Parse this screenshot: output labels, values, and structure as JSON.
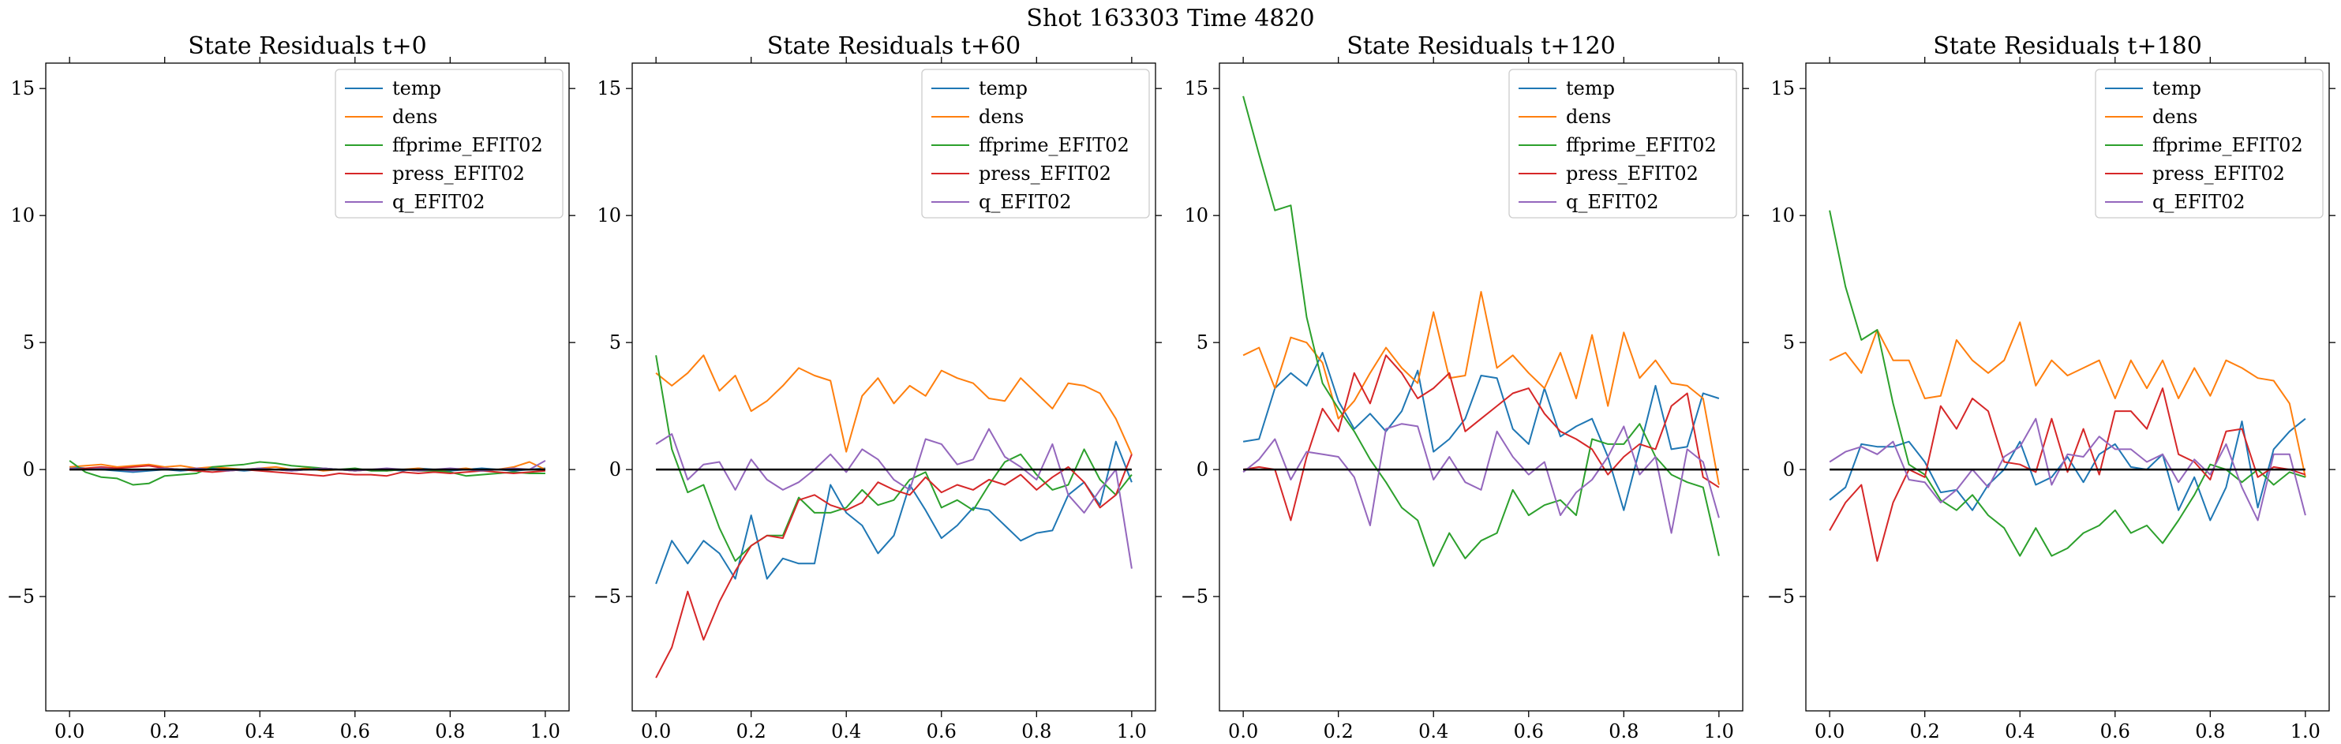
{
  "figure": {
    "suptitle": "Shot 163303   Time 4820"
  },
  "chart_data": [
    {
      "type": "line",
      "title": "State Residuals t+0",
      "xlabel": "",
      "ylabel": "",
      "xlim": [
        -0.05,
        1.05
      ],
      "ylim": [
        -9.5,
        16
      ],
      "xticks": [
        0.0,
        0.2,
        0.4,
        0.6,
        0.8,
        1.0
      ],
      "xtick_labels": [
        "0.0",
        "0.2",
        "0.4",
        "0.6",
        "0.8",
        "1.0"
      ],
      "yticks": [
        -5,
        0,
        5,
        10,
        15
      ],
      "ytick_labels": [
        "−5",
        "0",
        "5",
        "10",
        "15"
      ],
      "hline": 0,
      "legend_position": "top-right",
      "x": [
        0.0,
        0.0333,
        0.0667,
        0.1,
        0.1333,
        0.1667,
        0.2,
        0.2333,
        0.2667,
        0.3,
        0.3333,
        0.3667,
        0.4,
        0.4333,
        0.4667,
        0.5,
        0.5333,
        0.5667,
        0.6,
        0.6333,
        0.6667,
        0.7,
        0.7333,
        0.7667,
        0.8,
        0.8333,
        0.8667,
        0.9,
        0.9333,
        0.9667,
        1.0
      ],
      "series": [
        {
          "name": "temp",
          "color": "#1f77b4",
          "values": [
            0.1,
            0.05,
            0.0,
            -0.05,
            -0.1,
            -0.05,
            0.0,
            -0.05,
            0.0,
            0.05,
            0.0,
            -0.05,
            0.0,
            0.0,
            -0.05,
            0.0,
            0.05,
            0.0,
            -0.05,
            0.0,
            0.0,
            -0.05,
            0.05,
            0.0,
            -0.05,
            0.0,
            0.05,
            0.0,
            -0.05,
            0.0,
            0.05
          ]
        },
        {
          "name": "dens",
          "color": "#ff7f0e",
          "values": [
            0.1,
            0.15,
            0.2,
            0.1,
            0.15,
            0.2,
            0.1,
            0.15,
            0.05,
            0.1,
            0.05,
            0.0,
            0.05,
            0.1,
            0.0,
            0.05,
            -0.05,
            0.0,
            -0.05,
            0.0,
            -0.05,
            0.0,
            0.05,
            -0.05,
            0.0,
            0.05,
            -0.05,
            0.0,
            0.1,
            0.3,
            0.0
          ]
        },
        {
          "name": "ffprime_EFIT02",
          "color": "#2ca02c",
          "values": [
            0.35,
            -0.1,
            -0.3,
            -0.35,
            -0.6,
            -0.55,
            -0.25,
            -0.2,
            -0.15,
            0.1,
            0.15,
            0.2,
            0.3,
            0.25,
            0.15,
            0.1,
            0.05,
            0.0,
            0.05,
            -0.05,
            -0.05,
            0.0,
            -0.05,
            -0.05,
            -0.1,
            -0.25,
            -0.2,
            -0.15,
            -0.1,
            -0.15,
            -0.15
          ]
        },
        {
          "name": "press_EFIT02",
          "color": "#d62728",
          "values": [
            0.0,
            0.05,
            0.1,
            0.05,
            0.1,
            0.15,
            0.05,
            0.0,
            -0.05,
            -0.1,
            -0.05,
            0.0,
            -0.05,
            -0.1,
            -0.15,
            -0.2,
            -0.25,
            -0.15,
            -0.2,
            -0.2,
            -0.25,
            -0.1,
            -0.15,
            -0.1,
            -0.15,
            -0.1,
            -0.05,
            -0.1,
            -0.15,
            -0.1,
            -0.05
          ]
        },
        {
          "name": "q_EFIT02",
          "color": "#9467bd",
          "values": [
            0.05,
            0.0,
            0.05,
            0.0,
            -0.05,
            0.0,
            0.05,
            0.0,
            0.05,
            0.0,
            -0.05,
            0.0,
            0.05,
            0.0,
            -0.05,
            0.0,
            0.05,
            0.0,
            -0.05,
            0.0,
            0.05,
            0.0,
            -0.05,
            0.0,
            0.05,
            0.0,
            -0.05,
            0.0,
            0.05,
            0.0,
            0.35
          ]
        }
      ]
    },
    {
      "type": "line",
      "title": "State Residuals t+60",
      "xlabel": "",
      "ylabel": "",
      "xlim": [
        -0.05,
        1.05
      ],
      "ylim": [
        -9.5,
        16
      ],
      "xticks": [
        0.0,
        0.2,
        0.4,
        0.6,
        0.8,
        1.0
      ],
      "xtick_labels": [
        "0.0",
        "0.2",
        "0.4",
        "0.6",
        "0.8",
        "1.0"
      ],
      "yticks": [
        -5,
        0,
        5,
        10,
        15
      ],
      "ytick_labels": [
        "−5",
        "0",
        "5",
        "10",
        "15"
      ],
      "hline": 0,
      "legend_position": "top-right",
      "x": [
        0.0,
        0.0333,
        0.0667,
        0.1,
        0.1333,
        0.1667,
        0.2,
        0.2333,
        0.2667,
        0.3,
        0.3333,
        0.3667,
        0.4,
        0.4333,
        0.4667,
        0.5,
        0.5333,
        0.5667,
        0.6,
        0.6333,
        0.6667,
        0.7,
        0.7333,
        0.7667,
        0.8,
        0.8333,
        0.8667,
        0.9,
        0.9333,
        0.9667,
        1.0
      ],
      "series": [
        {
          "name": "temp",
          "color": "#1f77b4",
          "values": [
            -4.5,
            -2.8,
            -3.7,
            -2.8,
            -3.3,
            -4.3,
            -1.8,
            -4.3,
            -3.5,
            -3.7,
            -3.7,
            -0.6,
            -1.7,
            -2.2,
            -3.3,
            -2.6,
            -0.6,
            -1.6,
            -2.7,
            -2.2,
            -1.5,
            -1.6,
            -2.2,
            -2.8,
            -2.5,
            -2.4,
            -1.0,
            -0.5,
            -1.4,
            1.1,
            -0.5
          ]
        },
        {
          "name": "dens",
          "color": "#ff7f0e",
          "values": [
            3.8,
            3.3,
            3.8,
            4.5,
            3.1,
            3.7,
            2.3,
            2.7,
            3.3,
            4.0,
            3.7,
            3.5,
            0.7,
            2.9,
            3.6,
            2.6,
            3.3,
            2.9,
            3.9,
            3.6,
            3.4,
            2.8,
            2.7,
            3.6,
            3.0,
            2.4,
            3.4,
            3.3,
            3.0,
            2.0,
            0.6
          ]
        },
        {
          "name": "ffprime_EFIT02",
          "color": "#2ca02c",
          "values": [
            4.5,
            0.8,
            -0.9,
            -0.6,
            -2.3,
            -3.6,
            -3.0,
            -2.6,
            -2.6,
            -1.1,
            -1.7,
            -1.7,
            -1.5,
            -0.8,
            -1.4,
            -1.2,
            -0.4,
            -0.1,
            -1.5,
            -1.2,
            -1.6,
            -0.6,
            0.3,
            0.6,
            -0.2,
            -0.8,
            -0.6,
            0.8,
            -0.4,
            -1.0,
            -0.2
          ]
        },
        {
          "name": "press_EFIT02",
          "color": "#d62728",
          "values": [
            -8.2,
            -7.0,
            -4.8,
            -6.7,
            -5.2,
            -4.0,
            -3.0,
            -2.6,
            -2.7,
            -1.2,
            -1.0,
            -1.4,
            -1.6,
            -1.3,
            -0.5,
            -0.8,
            -1.0,
            -0.3,
            -0.9,
            -0.6,
            -0.8,
            -0.4,
            -0.6,
            -0.2,
            -0.8,
            -0.3,
            0.1,
            -0.5,
            -1.5,
            -1.0,
            0.6
          ]
        },
        {
          "name": "q_EFIT02",
          "color": "#9467bd",
          "values": [
            1.0,
            1.4,
            -0.4,
            0.2,
            0.3,
            -0.8,
            0.4,
            -0.4,
            -0.8,
            -0.5,
            0.0,
            0.6,
            -0.1,
            0.8,
            0.4,
            -0.4,
            -0.8,
            1.2,
            1.0,
            0.2,
            0.4,
            1.6,
            0.5,
            0.1,
            -0.4,
            1.0,
            -1.0,
            -1.7,
            -0.8,
            0.0,
            -3.9
          ]
        }
      ]
    },
    {
      "type": "line",
      "title": "State Residuals t+120",
      "xlabel": "",
      "ylabel": "",
      "xlim": [
        -0.05,
        1.05
      ],
      "ylim": [
        -9.5,
        16
      ],
      "xticks": [
        0.0,
        0.2,
        0.4,
        0.6,
        0.8,
        1.0
      ],
      "xtick_labels": [
        "0.0",
        "0.2",
        "0.4",
        "0.6",
        "0.8",
        "1.0"
      ],
      "yticks": [
        -5,
        0,
        5,
        10,
        15
      ],
      "ytick_labels": [
        "−5",
        "0",
        "5",
        "10",
        "15"
      ],
      "hline": 0,
      "legend_position": "top-right",
      "x": [
        0.0,
        0.0333,
        0.0667,
        0.1,
        0.1333,
        0.1667,
        0.2,
        0.2333,
        0.2667,
        0.3,
        0.3333,
        0.3667,
        0.4,
        0.4333,
        0.4667,
        0.5,
        0.5333,
        0.5667,
        0.6,
        0.6333,
        0.6667,
        0.7,
        0.7333,
        0.7667,
        0.8,
        0.8333,
        0.8667,
        0.9,
        0.9333,
        0.9667,
        1.0
      ],
      "series": [
        {
          "name": "temp",
          "color": "#1f77b4",
          "values": [
            1.1,
            1.2,
            3.2,
            3.8,
            3.3,
            4.6,
            2.7,
            1.6,
            2.2,
            1.5,
            2.3,
            3.9,
            0.7,
            1.2,
            2.0,
            3.7,
            3.6,
            1.6,
            1.0,
            3.2,
            1.3,
            1.7,
            2.0,
            0.5,
            -1.6,
            0.8,
            3.3,
            0.8,
            0.9,
            3.0,
            2.8
          ]
        },
        {
          "name": "dens",
          "color": "#ff7f0e",
          "values": [
            4.5,
            4.8,
            3.2,
            5.2,
            5.0,
            4.2,
            2.0,
            2.7,
            3.8,
            4.8,
            4.0,
            3.4,
            6.2,
            3.6,
            3.7,
            7.0,
            4.0,
            4.5,
            3.8,
            3.2,
            4.6,
            2.8,
            5.3,
            2.5,
            5.4,
            3.6,
            4.3,
            3.4,
            3.3,
            2.8,
            -0.6
          ]
        },
        {
          "name": "ffprime_EFIT02",
          "color": "#2ca02c",
          "values": [
            14.7,
            12.4,
            10.2,
            10.4,
            6.0,
            3.4,
            2.4,
            1.5,
            0.4,
            -0.5,
            -1.5,
            -2.0,
            -3.8,
            -2.5,
            -3.5,
            -2.8,
            -2.5,
            -0.8,
            -1.8,
            -1.4,
            -1.2,
            -1.8,
            1.2,
            1.0,
            1.0,
            1.8,
            0.5,
            -0.2,
            -0.5,
            -0.7,
            -3.4
          ]
        },
        {
          "name": "press_EFIT02",
          "color": "#d62728",
          "values": [
            0.0,
            0.1,
            0.0,
            -2.0,
            0.5,
            2.4,
            1.5,
            3.8,
            2.6,
            4.5,
            3.8,
            2.8,
            3.2,
            3.8,
            1.5,
            2.0,
            2.5,
            3.0,
            3.2,
            2.2,
            1.5,
            1.2,
            0.8,
            -0.2,
            0.5,
            1.0,
            0.8,
            2.5,
            3.0,
            -0.3,
            -0.7
          ]
        },
        {
          "name": "q_EFIT02",
          "color": "#9467bd",
          "values": [
            -0.1,
            0.4,
            1.2,
            -0.4,
            0.7,
            0.6,
            0.5,
            -0.3,
            -2.2,
            1.6,
            1.8,
            1.7,
            -0.4,
            0.5,
            -0.5,
            -0.8,
            1.5,
            0.5,
            -0.2,
            0.3,
            -1.8,
            -0.9,
            -0.4,
            0.5,
            1.7,
            -0.2,
            0.5,
            -2.5,
            0.8,
            0.3,
            -1.9
          ]
        }
      ]
    },
    {
      "type": "line",
      "title": "State Residuals t+180",
      "xlabel": "",
      "ylabel": "",
      "xlim": [
        -0.05,
        1.05
      ],
      "ylim": [
        -9.5,
        16
      ],
      "xticks": [
        0.0,
        0.2,
        0.4,
        0.6,
        0.8,
        1.0
      ],
      "xtick_labels": [
        "0.0",
        "0.2",
        "0.4",
        "0.6",
        "0.8",
        "1.0"
      ],
      "yticks": [
        -5,
        0,
        5,
        10,
        15
      ],
      "ytick_labels": [
        "−5",
        "0",
        "5",
        "10",
        "15"
      ],
      "hline": 0,
      "legend_position": "top-right",
      "x": [
        0.0,
        0.0333,
        0.0667,
        0.1,
        0.1333,
        0.1667,
        0.2,
        0.2333,
        0.2667,
        0.3,
        0.3333,
        0.3667,
        0.4,
        0.4333,
        0.4667,
        0.5,
        0.5333,
        0.5667,
        0.6,
        0.6333,
        0.6667,
        0.7,
        0.7333,
        0.7667,
        0.8,
        0.8333,
        0.8667,
        0.9,
        0.9333,
        0.9667,
        1.0
      ],
      "series": [
        {
          "name": "temp",
          "color": "#1f77b4",
          "values": [
            -1.2,
            -0.7,
            1.0,
            0.9,
            0.9,
            1.1,
            0.3,
            -0.9,
            -0.8,
            -1.6,
            -0.6,
            0.0,
            1.1,
            -0.6,
            -0.3,
            0.5,
            -0.5,
            0.6,
            1.0,
            0.1,
            0.0,
            0.6,
            -1.6,
            -0.3,
            -2.0,
            -0.7,
            1.9,
            -1.5,
            0.8,
            1.5,
            2.0
          ]
        },
        {
          "name": "dens",
          "color": "#ff7f0e",
          "values": [
            4.3,
            4.6,
            3.8,
            5.5,
            4.3,
            4.3,
            2.8,
            2.9,
            5.1,
            4.3,
            3.8,
            4.3,
            5.8,
            3.3,
            4.3,
            3.7,
            4.0,
            4.3,
            2.8,
            4.3,
            3.2,
            4.3,
            2.8,
            4.0,
            2.9,
            4.3,
            4.0,
            3.6,
            3.5,
            2.6,
            -0.3
          ]
        },
        {
          "name": "ffprime_EFIT02",
          "color": "#2ca02c",
          "values": [
            10.2,
            7.2,
            5.1,
            5.5,
            2.6,
            0.2,
            -0.2,
            -1.2,
            -1.6,
            -1.0,
            -1.8,
            -2.3,
            -3.4,
            -2.3,
            -3.4,
            -3.1,
            -2.5,
            -2.2,
            -1.6,
            -2.5,
            -2.2,
            -2.9,
            -2.0,
            -1.0,
            0.2,
            0.0,
            -0.5,
            0.0,
            -0.6,
            -0.1,
            -0.3
          ]
        },
        {
          "name": "press_EFIT02",
          "color": "#d62728",
          "values": [
            -2.4,
            -1.3,
            -0.6,
            -3.6,
            -1.3,
            0.0,
            -0.3,
            2.5,
            1.6,
            2.8,
            2.3,
            0.3,
            0.2,
            -0.1,
            2.0,
            -0.1,
            1.6,
            -0.2,
            2.3,
            2.3,
            1.6,
            3.2,
            0.6,
            0.3,
            -0.4,
            1.5,
            1.6,
            -0.3,
            0.1,
            0.0,
            -0.2
          ]
        },
        {
          "name": "q_EFIT02",
          "color": "#9467bd",
          "values": [
            0.3,
            0.7,
            0.9,
            0.6,
            1.1,
            -0.4,
            -0.5,
            -1.3,
            -0.8,
            0.0,
            -0.7,
            0.5,
            0.9,
            2.0,
            -0.6,
            0.6,
            0.5,
            1.3,
            0.8,
            0.8,
            0.3,
            0.6,
            -0.5,
            0.4,
            -0.2,
            1.0,
            -0.7,
            -2.0,
            0.6,
            0.6,
            -1.8
          ]
        }
      ]
    }
  ]
}
